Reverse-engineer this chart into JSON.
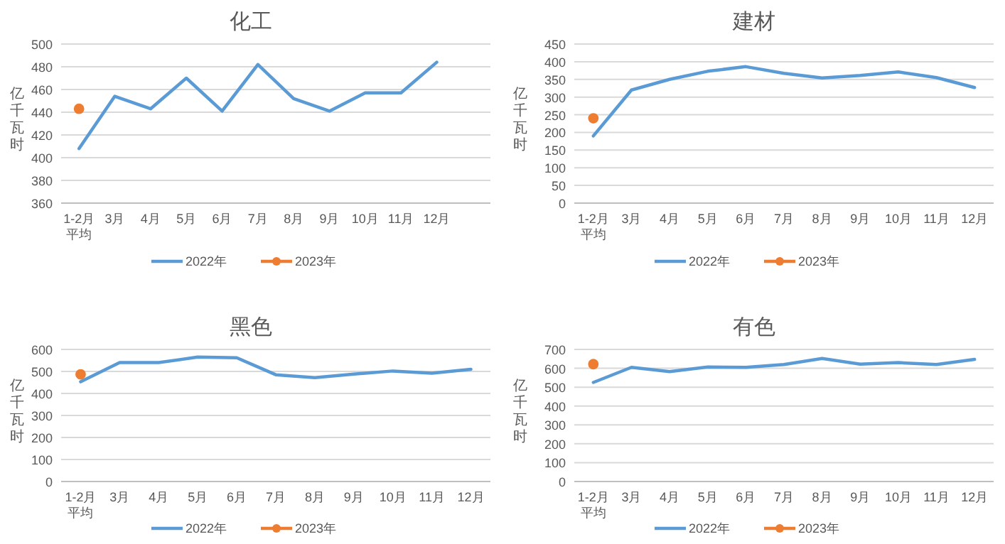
{
  "chart_data": [
    {
      "type": "line",
      "title": "化工",
      "ylabel": "亿千瓦时",
      "categories": [
        "1-2月平均",
        "3月",
        "4月",
        "5月",
        "6月",
        "7月",
        "8月",
        "9月",
        "10月",
        "11月",
        "12月",
        null
      ],
      "ylim": [
        360,
        500
      ],
      "yticks": [
        360,
        380,
        400,
        420,
        440,
        460,
        480,
        500
      ],
      "grid": "y",
      "legend": "bottom",
      "series": [
        {
          "name": "2022年",
          "color": "#5b9bd5",
          "marker": "none",
          "values": [
            408,
            454,
            443,
            470,
            441,
            482,
            452,
            441,
            457,
            457,
            484,
            null
          ]
        },
        {
          "name": "2023年",
          "color": "#ed7d31",
          "marker": "circle",
          "values": [
            443,
            null,
            null,
            null,
            null,
            null,
            null,
            null,
            null,
            null,
            null,
            null
          ]
        }
      ]
    },
    {
      "type": "line",
      "title": "建材",
      "ylabel": "亿千瓦时",
      "categories": [
        "1-2月平均",
        "3月",
        "4月",
        "5月",
        "6月",
        "7月",
        "8月",
        "9月",
        "10月",
        "11月",
        "12月"
      ],
      "ylim": [
        0,
        450
      ],
      "yticks": [
        0,
        50,
        100,
        150,
        200,
        250,
        300,
        350,
        400,
        450
      ],
      "grid": "y",
      "legend": "bottom",
      "series": [
        {
          "name": "2022年",
          "color": "#5b9bd5",
          "marker": "none",
          "values": [
            190,
            320,
            350,
            373,
            386,
            367,
            354,
            361,
            371,
            355,
            327
          ]
        },
        {
          "name": "2023年",
          "color": "#ed7d31",
          "marker": "circle",
          "values": [
            240,
            null,
            null,
            null,
            null,
            null,
            null,
            null,
            null,
            null,
            null
          ]
        }
      ]
    },
    {
      "type": "line",
      "title": "黑色",
      "ylabel": "亿千瓦时",
      "categories": [
        "1-2月平均",
        "3月",
        "4月",
        "5月",
        "6月",
        "7月",
        "8月",
        "9月",
        "10月",
        "11月",
        "12月"
      ],
      "ylim": [
        0,
        600
      ],
      "yticks": [
        0,
        100,
        200,
        300,
        400,
        500,
        600
      ],
      "grid": "y",
      "legend": "bottom",
      "series": [
        {
          "name": "2022年",
          "color": "#5b9bd5",
          "marker": "none",
          "values": [
            453,
            540,
            540,
            565,
            562,
            485,
            472,
            488,
            502,
            492,
            510
          ]
        },
        {
          "name": "2023年",
          "color": "#ed7d31",
          "marker": "circle",
          "values": [
            487,
            null,
            null,
            null,
            null,
            null,
            null,
            null,
            null,
            null,
            null
          ]
        }
      ]
    },
    {
      "type": "line",
      "title": "有色",
      "ylabel": "亿千瓦时",
      "categories": [
        "1-2月平均",
        "3月",
        "4月",
        "5月",
        "6月",
        "7月",
        "8月",
        "9月",
        "10月",
        "11月",
        "12月"
      ],
      "ylim": [
        0,
        700
      ],
      "yticks": [
        0,
        100,
        200,
        300,
        400,
        500,
        600,
        700
      ],
      "grid": "y",
      "legend": "bottom",
      "series": [
        {
          "name": "2022年",
          "color": "#5b9bd5",
          "marker": "none",
          "values": [
            525,
            605,
            582,
            607,
            605,
            620,
            652,
            622,
            630,
            620,
            647
          ]
        },
        {
          "name": "2023年",
          "color": "#ed7d31",
          "marker": "circle",
          "values": [
            622,
            null,
            null,
            null,
            null,
            null,
            null,
            null,
            null,
            null,
            null
          ]
        }
      ]
    }
  ]
}
